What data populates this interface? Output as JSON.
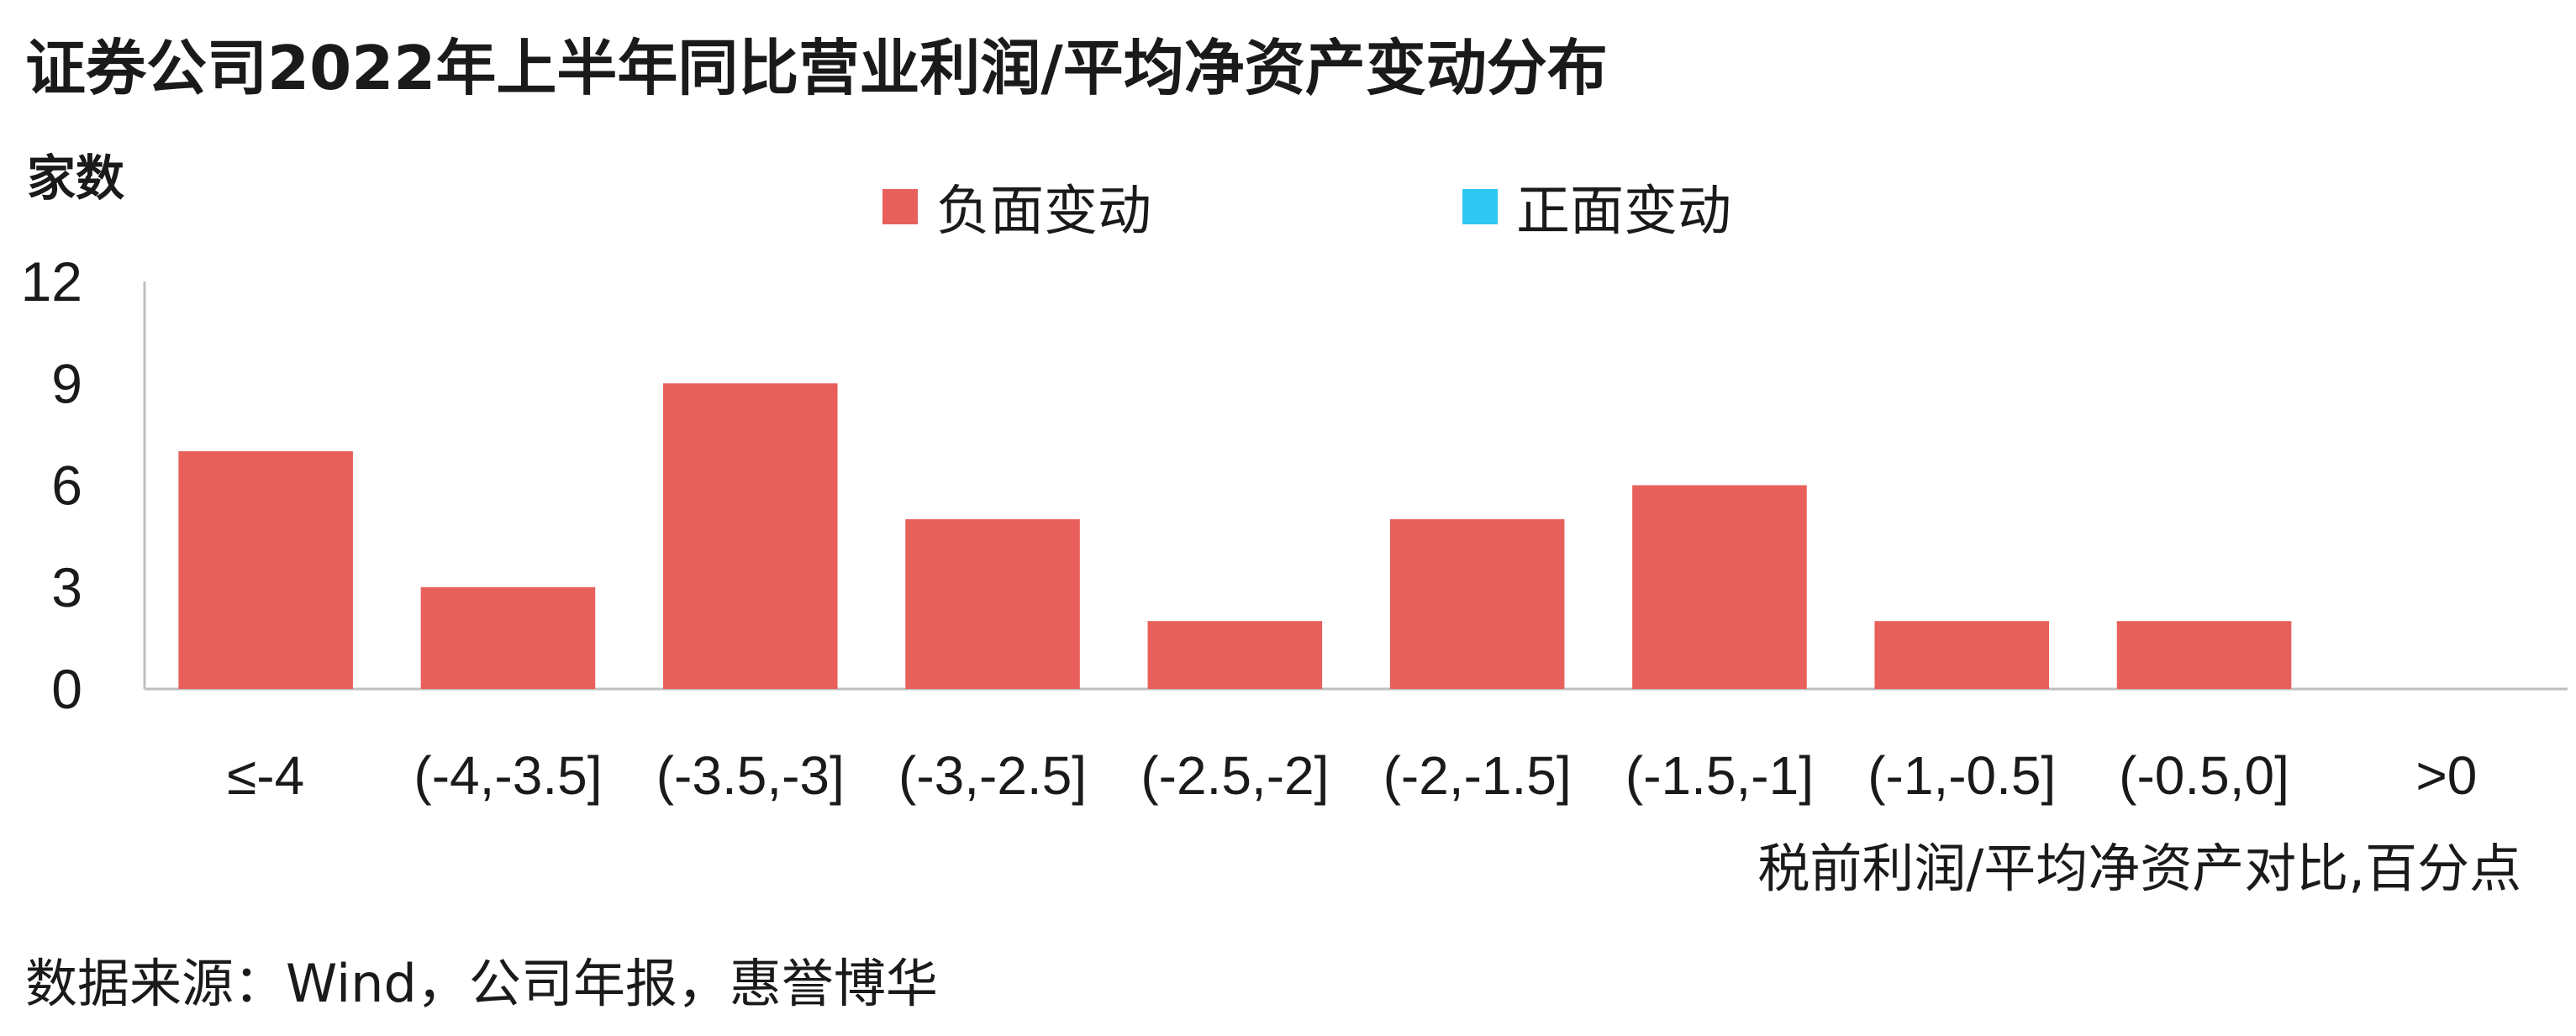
{
  "title": "证券公司2022年上半年同比营业利润/平均净资产变动分布",
  "source": "数据来源：Wind，公司年报，惠誉博华",
  "chart_data": {
    "type": "bar",
    "ylabel": "家数",
    "xlabel": "税前利润/平均净资产对比,百分点",
    "categories": [
      "≤-4",
      "(-4,-3.5]",
      "(-3.5,-3]",
      "(-3,-2.5]",
      "(-2.5,-2]",
      "(-2,-1.5]",
      "(-1.5,-1]",
      "(-1,-0.5]",
      "(-0.5,0]",
      ">0"
    ],
    "series": [
      {
        "name": "负面变动",
        "color": "#e8605b",
        "values": [
          7,
          3,
          9,
          5,
          2,
          5,
          6,
          2,
          2,
          0
        ]
      },
      {
        "name": "正面变动",
        "color": "#2ec7f2",
        "values": [
          0,
          0,
          0,
          0,
          0,
          0,
          0,
          0,
          0,
          0
        ]
      }
    ],
    "ylim": [
      0,
      12
    ],
    "yticks": [
      0,
      3,
      6,
      9,
      12
    ],
    "grid": false,
    "legend": "top-center"
  }
}
